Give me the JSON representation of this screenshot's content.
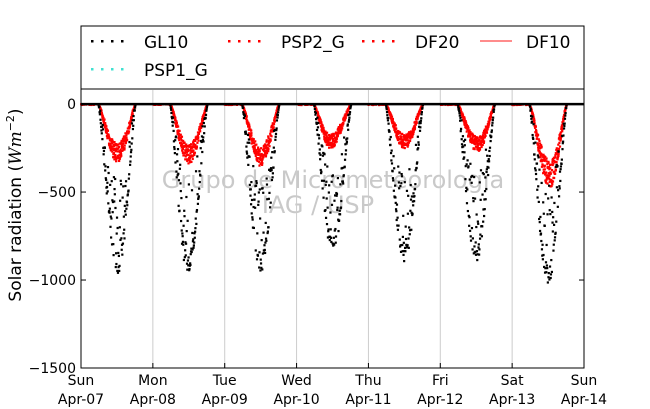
{
  "chart_data": {
    "type": "scatter",
    "ylabel": "Solar radiation ($Wm^{-2}$)",
    "ylabel_parts": {
      "text": "Solar radiation (",
      "unit": "Wm",
      "exp": "−2",
      "close": ")"
    },
    "ylim": [
      -1500,
      80
    ],
    "yticks": [
      0,
      -500,
      -1000,
      -1500
    ],
    "ytick_labels": [
      "0",
      "−500",
      "−1000",
      "−1500"
    ],
    "xlim": [
      0,
      7
    ],
    "xticks": [
      0,
      1,
      2,
      3,
      4,
      5,
      6,
      7
    ],
    "xtick_labels": [
      [
        "Sun",
        "Apr-07"
      ],
      [
        "Mon",
        "Apr-08"
      ],
      [
        "Tue",
        "Apr-09"
      ],
      [
        "Wed",
        "Apr-10"
      ],
      [
        "Thu",
        "Apr-11"
      ],
      [
        "Fri",
        "Apr-12"
      ],
      [
        "Sat",
        "Apr-13"
      ],
      [
        "Sun",
        "Apr-14"
      ]
    ],
    "grid": "vertical",
    "legend_placement": "top",
    "watermark": [
      "Grupo de Micrometeorologia",
      "IAG / USP"
    ],
    "series": [
      {
        "name": "GL10",
        "marker": "dotted",
        "color": "#000000"
      },
      {
        "name": "PSP2_G",
        "marker": "dotted",
        "color": "#ff0000"
      },
      {
        "name": "DF20",
        "marker": "dotted",
        "color": "#ff0000"
      },
      {
        "name": "DF10",
        "marker": "line",
        "color": "#ff6666"
      },
      {
        "name": "PSP1_G",
        "marker": "dotted",
        "color": "#40e0d0"
      }
    ],
    "days": [
      {
        "start": 0.24,
        "end": 0.76,
        "gl_peak": -960,
        "df_peak": -300,
        "gl_t": 0.53,
        "df_t": 0.52
      },
      {
        "start": 1.24,
        "end": 1.76,
        "gl_peak": -960,
        "df_peak": -310,
        "gl_t": 0.47,
        "df_t": 0.5
      },
      {
        "start": 2.24,
        "end": 2.76,
        "gl_peak": -950,
        "df_peak": -320,
        "gl_t": 0.5,
        "df_t": 0.5
      },
      {
        "start": 3.24,
        "end": 3.76,
        "gl_peak": -855,
        "df_peak": -230,
        "gl_t": 0.5,
        "df_t": 0.44
      },
      {
        "start": 4.24,
        "end": 4.76,
        "gl_peak": -900,
        "df_peak": -230,
        "gl_t": 0.5,
        "df_t": 0.5
      },
      {
        "start": 5.24,
        "end": 5.76,
        "gl_peak": -890,
        "df_peak": -250,
        "gl_t": 0.5,
        "df_t": 0.54
      },
      {
        "start": 6.24,
        "end": 6.76,
        "gl_peak": -1020,
        "df_peak": -430,
        "gl_t": 0.5,
        "df_t": 0.55
      }
    ]
  }
}
